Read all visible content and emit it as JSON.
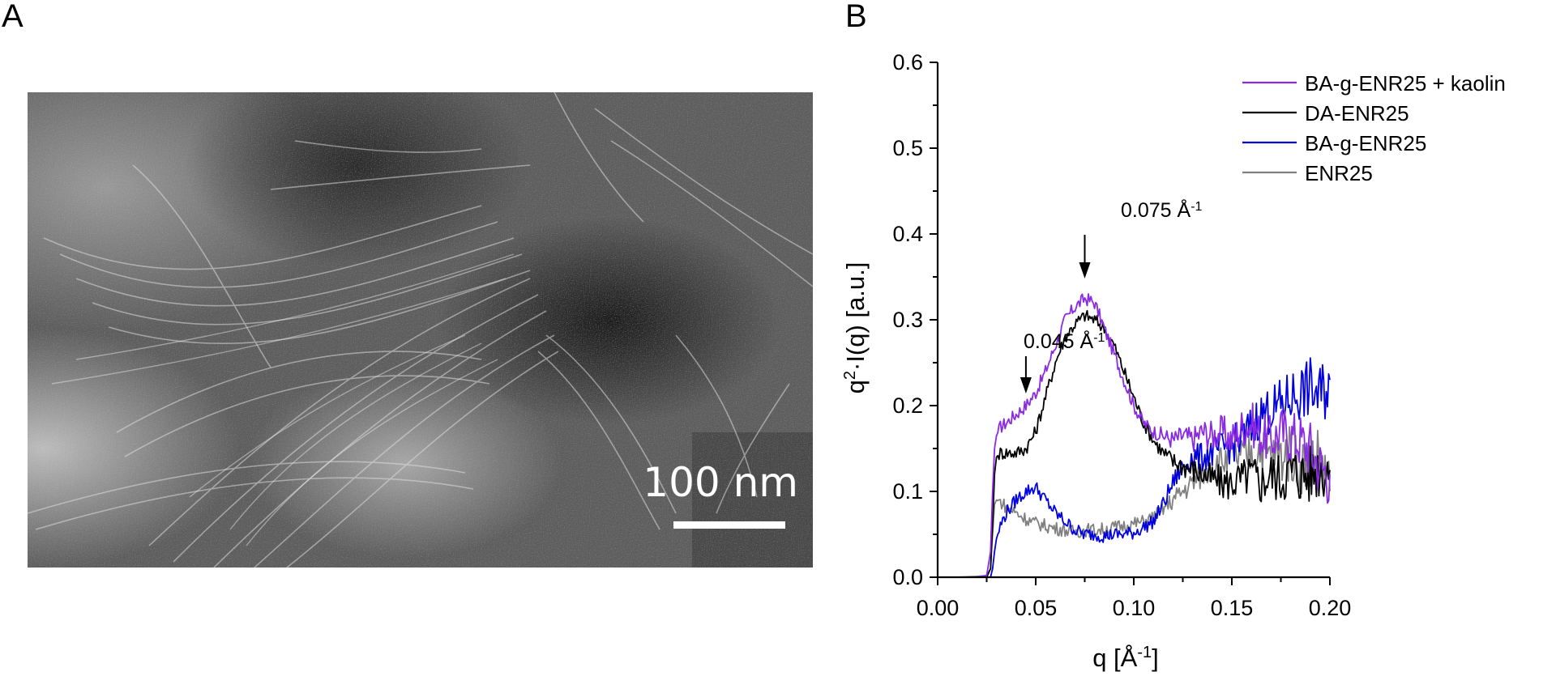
{
  "panels": {
    "a_label": "A",
    "b_label": "B"
  },
  "tem_image": {
    "scale_bar_label": "100 nm"
  },
  "chart_data": {
    "type": "line",
    "title": "",
    "xlabel": "q [Å-1]",
    "xlabel_parts": {
      "base": "q [Å",
      "sup": "-1",
      "end": "]"
    },
    "ylabel_parts": {
      "base": "q",
      "sup": "2",
      "rest": "·I(q) [a.u.]"
    },
    "xlim": [
      0.0,
      0.2
    ],
    "ylim": [
      0.0,
      0.6
    ],
    "x_ticks": [
      0.0,
      0.05,
      0.1,
      0.15,
      0.2
    ],
    "x_tick_labels": [
      "0.00",
      "0.05",
      "0.10",
      "0.15",
      "0.20"
    ],
    "y_ticks": [
      0.0,
      0.1,
      0.2,
      0.3,
      0.4,
      0.5,
      0.6
    ],
    "y_tick_labels": [
      "0.0",
      "0.1",
      "0.2",
      "0.3",
      "0.4",
      "0.5",
      "0.6"
    ],
    "grid": false,
    "legend_position": "top-right",
    "annotations": [
      {
        "text": "0.045 Å",
        "sup": "-1",
        "x": 0.045,
        "y": 0.2
      },
      {
        "text": "0.075 Å",
        "sup": "-1",
        "x": 0.075,
        "y": 0.335
      }
    ],
    "x": [
      0.01,
      0.02,
      0.025,
      0.027,
      0.028,
      0.029,
      0.03,
      0.032,
      0.035,
      0.04,
      0.045,
      0.05,
      0.055,
      0.06,
      0.065,
      0.07,
      0.075,
      0.08,
      0.085,
      0.09,
      0.095,
      0.1,
      0.105,
      0.11,
      0.115,
      0.12,
      0.125,
      0.13,
      0.135,
      0.14,
      0.145,
      0.15,
      0.155,
      0.16,
      0.165,
      0.17,
      0.175,
      0.18,
      0.185,
      0.19,
      0.195,
      0.2
    ],
    "series": [
      {
        "name": "BA-g-ENR25 + kaolin",
        "color": "#8a2be2",
        "values": [
          0.0,
          0.0,
          0.002,
          0.03,
          0.1,
          0.15,
          0.165,
          0.175,
          0.18,
          0.19,
          0.2,
          0.215,
          0.24,
          0.27,
          0.3,
          0.315,
          0.325,
          0.32,
          0.29,
          0.26,
          0.23,
          0.2,
          0.18,
          0.17,
          0.165,
          0.16,
          0.165,
          0.16,
          0.17,
          0.165,
          0.17,
          0.16,
          0.175,
          0.18,
          0.165,
          0.16,
          0.17,
          0.165,
          0.16,
          0.15,
          0.13,
          0.12
        ]
      },
      {
        "name": "DA-ENR25",
        "color": "#000000",
        "values": [
          0.0,
          0.0,
          0.0,
          0.01,
          0.06,
          0.12,
          0.14,
          0.145,
          0.145,
          0.145,
          0.15,
          0.17,
          0.21,
          0.25,
          0.28,
          0.295,
          0.305,
          0.3,
          0.29,
          0.27,
          0.24,
          0.21,
          0.18,
          0.16,
          0.145,
          0.135,
          0.13,
          0.125,
          0.12,
          0.115,
          0.11,
          0.11,
          0.115,
          0.12,
          0.11,
          0.12,
          0.115,
          0.125,
          0.12,
          0.12,
          0.13,
          0.125
        ]
      },
      {
        "name": "BA-g-ENR25",
        "color": "#0000e0",
        "values": [
          0.0,
          0.0,
          0.0,
          0.0,
          0.01,
          0.03,
          0.045,
          0.06,
          0.075,
          0.09,
          0.1,
          0.105,
          0.09,
          0.075,
          0.065,
          0.055,
          0.05,
          0.05,
          0.048,
          0.05,
          0.05,
          0.052,
          0.058,
          0.065,
          0.085,
          0.11,
          0.13,
          0.14,
          0.14,
          0.145,
          0.15,
          0.155,
          0.16,
          0.175,
          0.19,
          0.195,
          0.2,
          0.21,
          0.215,
          0.22,
          0.21,
          0.23
        ]
      },
      {
        "name": "ENR25",
        "color": "#808080",
        "values": [
          0.0,
          0.001,
          0.002,
          0.01,
          0.05,
          0.085,
          0.09,
          0.088,
          0.082,
          0.075,
          0.068,
          0.063,
          0.06,
          0.057,
          0.055,
          0.053,
          0.055,
          0.055,
          0.056,
          0.058,
          0.06,
          0.062,
          0.065,
          0.07,
          0.08,
          0.09,
          0.1,
          0.11,
          0.12,
          0.13,
          0.135,
          0.14,
          0.14,
          0.145,
          0.15,
          0.14,
          0.14,
          0.145,
          0.13,
          0.14,
          0.14,
          0.1
        ]
      }
    ]
  }
}
